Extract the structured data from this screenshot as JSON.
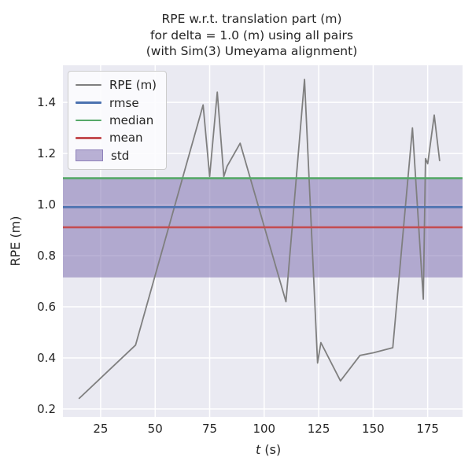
{
  "colors": {
    "axes_background": "#EAEAF2",
    "grid": "#FFFFFF",
    "text": "#262626",
    "rpe_line": "#7F7F7F",
    "rmse_line": "#4C72B0",
    "median_line": "#55A868",
    "mean_line": "#C44E52",
    "std_fill": "#8172B2"
  },
  "chart_data": {
    "type": "line",
    "title_lines": [
      "RPE w.r.t. translation part (m)",
      "for delta = 1.0 (m) using all pairs",
      "(with Sim(3) Umeyama alignment)"
    ],
    "xlabel": "t (s)",
    "xlabel_italic": "t",
    "xlabel_rest": " (s)",
    "ylabel": "RPE (m)",
    "xlim": [
      7.7,
      191.0
    ],
    "ylim": [
      0.169,
      1.545
    ],
    "xticks": [
      25,
      50,
      75,
      100,
      125,
      150,
      175
    ],
    "yticks": [
      0.2,
      0.4,
      0.6,
      0.8,
      1.0,
      1.2,
      1.4
    ],
    "grid": true,
    "legend_position": "upper left",
    "series": [
      {
        "name": "RPE (m)",
        "kind": "line",
        "color": "#7F7F7F",
        "points": [
          [
            15,
            0.24
          ],
          [
            41,
            0.45
          ],
          [
            72,
            1.39
          ],
          [
            75,
            1.11
          ],
          [
            78.5,
            1.44
          ],
          [
            81.5,
            1.11
          ],
          [
            83,
            1.15
          ],
          [
            89,
            1.24
          ],
          [
            110,
            0.62
          ],
          [
            118.5,
            1.49
          ],
          [
            124.5,
            0.38
          ],
          [
            126,
            0.46
          ],
          [
            135,
            0.31
          ],
          [
            144,
            0.41
          ],
          [
            150,
            0.42
          ],
          [
            159,
            0.44
          ],
          [
            168,
            1.3
          ],
          [
            173,
            0.63
          ],
          [
            174,
            1.18
          ],
          [
            175,
            1.16
          ],
          [
            178,
            1.35
          ],
          [
            180.5,
            1.17
          ]
        ]
      },
      {
        "name": "rmse",
        "kind": "hline",
        "color": "#4C72B0",
        "value": 0.99
      },
      {
        "name": "median",
        "kind": "hline",
        "color": "#55A868",
        "value": 1.103
      },
      {
        "name": "mean",
        "kind": "hline",
        "color": "#C44E52",
        "value": 0.911
      },
      {
        "name": "std",
        "kind": "band",
        "color": "#8172B2",
        "opacity": 0.55,
        "range": [
          0.715,
          1.105
        ]
      }
    ]
  }
}
